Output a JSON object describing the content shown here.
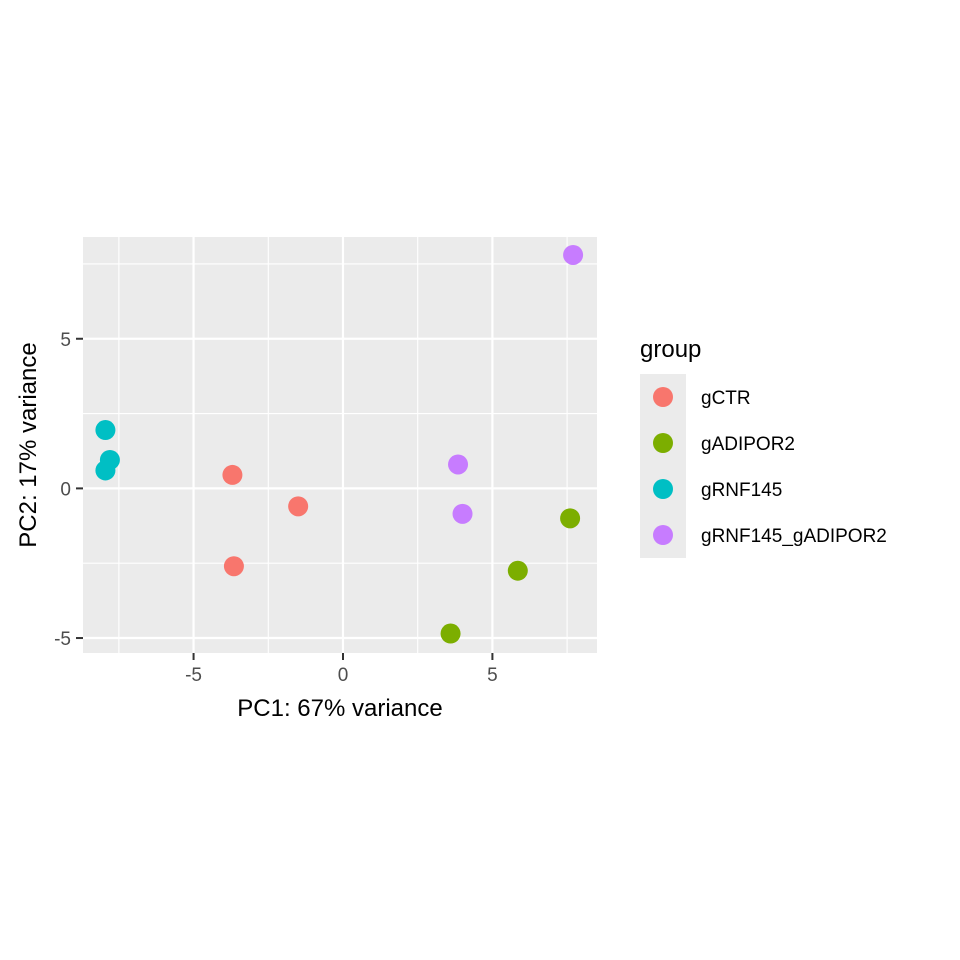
{
  "chart_data": {
    "type": "scatter",
    "xlabel": "PC1: 67% variance",
    "ylabel": "PC2: 17% variance",
    "xlim": [
      -8.7,
      8.5
    ],
    "ylim": [
      -5.5,
      8.4
    ],
    "x_ticks": [
      -5,
      0,
      5
    ],
    "x_tick_labels": [
      "-5",
      "0",
      "5"
    ],
    "y_ticks": [
      -5,
      0,
      5
    ],
    "y_tick_labels": [
      "-5",
      "0",
      "5"
    ],
    "grid": true,
    "legend": {
      "title": "group",
      "position": "right"
    },
    "series": [
      {
        "name": "gCTR",
        "color": "#F8766D",
        "points": [
          {
            "x": -3.7,
            "y": 0.45
          },
          {
            "x": -1.5,
            "y": -0.6
          },
          {
            "x": -3.65,
            "y": -2.6
          }
        ]
      },
      {
        "name": "gADIPOR2",
        "color": "#7CAE00",
        "points": [
          {
            "x": 7.6,
            "y": -1.0
          },
          {
            "x": 5.85,
            "y": -2.75
          },
          {
            "x": 3.6,
            "y": -4.85
          }
        ]
      },
      {
        "name": "gRNF145",
        "color": "#00BFC4",
        "points": [
          {
            "x": -7.95,
            "y": 1.95
          },
          {
            "x": -7.8,
            "y": 0.95
          },
          {
            "x": -7.95,
            "y": 0.6
          }
        ]
      },
      {
        "name": "gRNF145_gADIPOR2",
        "color": "#C77CFF",
        "points": [
          {
            "x": 7.7,
            "y": 7.8
          },
          {
            "x": 3.85,
            "y": 0.8
          },
          {
            "x": 4.0,
            "y": -0.85
          }
        ]
      }
    ]
  }
}
